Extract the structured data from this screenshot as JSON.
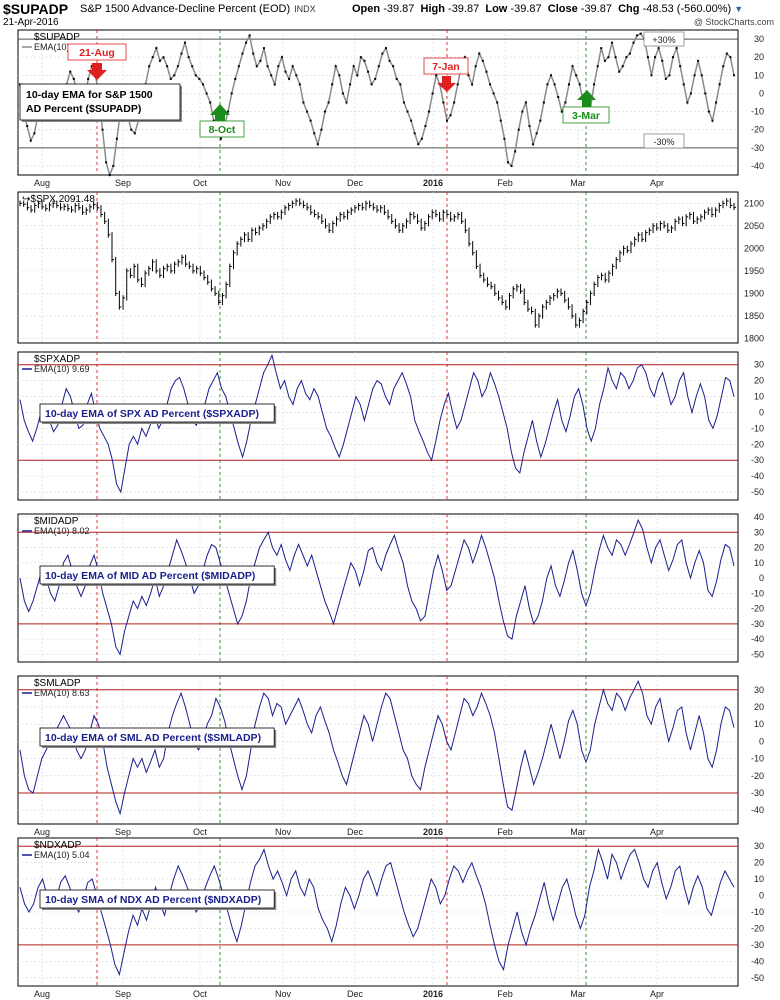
{
  "header": {
    "symbol": "$SUPADP",
    "description": "S&P 1500 Advance-Decline Percent (EOD)",
    "exchange": "INDX",
    "date": "21-Apr-2016",
    "open_label": "Open",
    "open": "-39.87",
    "high_label": "High",
    "high": "-39.87",
    "low_label": "Low",
    "low": "-39.87",
    "close_label": "Close",
    "close": "-39.87",
    "chg_label": "Chg",
    "chg": "-48.53 (-560.00%)",
    "credit": "@ StockCharts.com"
  },
  "colors": {
    "navy": "#1a1f8c",
    "gray_line": "#8a8a8a",
    "red_line": "#b0201c",
    "green": "#1b8c1b",
    "red_marker": "#e02020"
  },
  "months": [
    "Aug",
    "Sep",
    "Oct",
    "Nov",
    "Dec",
    "2016",
    "Feb",
    "Mar",
    "Apr"
  ],
  "annotations": {
    "aug21": "21-Aug",
    "oct8": "8-Oct",
    "jan7": "7-Jan",
    "mar3": "3-Mar",
    "plus30": "+30%",
    "minus30": "-30%",
    "supadp_box_line1": "10-day EMA for S&P 1500",
    "supadp_box_line2": "AD Percent ($SUPADP)"
  },
  "chart_data": [
    {
      "type": "line",
      "symbol": "$SUPADP",
      "series_label": "EMA(10)",
      "legend_entries": [
        "$SUPADP",
        "EMA(10)"
      ],
      "yticks": [
        30,
        20,
        10,
        0,
        -10,
        -20,
        -30,
        -40
      ],
      "ylim": [
        -45,
        35
      ],
      "ref_lines": [
        30,
        -30
      ],
      "values": [
        5,
        -10,
        -18,
        -26,
        -22,
        -12,
        -5,
        2,
        0,
        -8,
        -15,
        -10,
        -2,
        5,
        12,
        8,
        0,
        -10,
        -5,
        8,
        15,
        10,
        0,
        -20,
        -38,
        -45,
        -40,
        -25,
        -10,
        -15,
        -12,
        -20,
        -22,
        -15,
        -10,
        5,
        15,
        20,
        25,
        18,
        20,
        15,
        8,
        10,
        15,
        22,
        28,
        20,
        15,
        10,
        8,
        5,
        0,
        -5,
        -15,
        -20,
        -25,
        -18,
        -10,
        0,
        8,
        15,
        22,
        28,
        32,
        22,
        15,
        18,
        25,
        15,
        10,
        5,
        15,
        20,
        12,
        8,
        15,
        10,
        5,
        -5,
        -10,
        -15,
        -22,
        -28,
        -20,
        -10,
        -5,
        5,
        15,
        10,
        0,
        -5,
        5,
        15,
        10,
        20,
        18,
        12,
        5,
        8,
        15,
        22,
        25,
        18,
        15,
        8,
        5,
        -5,
        -10,
        -15,
        -22,
        -28,
        -25,
        -18,
        -10,
        0,
        10,
        5,
        -5,
        -15,
        -12,
        -5,
        5,
        15,
        20,
        10,
        5,
        15,
        22,
        18,
        12,
        5,
        0,
        -5,
        -15,
        -25,
        -38,
        -40,
        -32,
        -20,
        -10,
        -5,
        -18,
        -28,
        -22,
        -15,
        -5,
        5,
        10,
        5,
        -2,
        -10,
        -5,
        5,
        15,
        10,
        5,
        -5,
        -12,
        -8,
        5,
        15,
        25,
        18,
        20,
        28,
        20,
        12,
        15,
        20,
        22,
        28,
        32,
        33,
        30,
        20,
        10,
        20,
        25,
        18,
        8,
        10,
        20,
        25,
        15,
        5,
        -5,
        0,
        10,
        18,
        10,
        0,
        -10,
        -15,
        -5,
        5,
        15,
        22,
        20,
        10
      ],
      "events": [
        {
          "date": "21-Aug",
          "type": "peak",
          "color": "red"
        },
        {
          "date": "8-Oct",
          "type": "trough",
          "color": "green"
        },
        {
          "date": "7-Jan",
          "type": "peak",
          "color": "red"
        },
        {
          "date": "3-Mar",
          "type": "trough",
          "color": "green"
        }
      ]
    },
    {
      "type": "candlestick",
      "symbol": "$SPX",
      "last_value": "2091.48",
      "yticks": [
        2100,
        2050,
        2000,
        1950,
        1900,
        1850,
        1800
      ],
      "ylim": [
        1790,
        2125
      ],
      "values": [
        2100,
        2098,
        2090,
        2085,
        2095,
        2100,
        2092,
        2088,
        2096,
        2100,
        2095,
        2090,
        2093,
        2088,
        2085,
        2095,
        2090,
        2080,
        2085,
        2092,
        2097,
        2090,
        2075,
        2060,
        2030,
        1975,
        1900,
        1870,
        1890,
        1950,
        1940,
        1960,
        1930,
        1920,
        1945,
        1955,
        1970,
        1950,
        1940,
        1955,
        1960,
        1950,
        1965,
        1970,
        1980,
        1965,
        1960,
        1950,
        1955,
        1945,
        1935,
        1925,
        1910,
        1900,
        1880,
        1895,
        1920,
        1960,
        1990,
        2010,
        2020,
        2030,
        2020,
        2040,
        2035,
        2045,
        2050,
        2060,
        2070,
        2075,
        2070,
        2080,
        2090,
        2095,
        2100,
        2105,
        2100,
        2095,
        2090,
        2080,
        2075,
        2070,
        2060,
        2050,
        2040,
        2055,
        2065,
        2075,
        2070,
        2080,
        2085,
        2090,
        2095,
        2090,
        2100,
        2095,
        2090,
        2085,
        2090,
        2080,
        2070,
        2060,
        2050,
        2040,
        2050,
        2060,
        2075,
        2070,
        2060,
        2045,
        2055,
        2070,
        2080,
        2075,
        2065,
        2080,
        2075,
        2065,
        2070,
        2075,
        2060,
        2040,
        2010,
        1990,
        1960,
        1940,
        1930,
        1920,
        1915,
        1900,
        1890,
        1880,
        1870,
        1895,
        1910,
        1915,
        1905,
        1880,
        1865,
        1860,
        1830,
        1850,
        1870,
        1880,
        1890,
        1895,
        1905,
        1900,
        1885,
        1870,
        1850,
        1830,
        1840,
        1860,
        1880,
        1900,
        1920,
        1935,
        1940,
        1930,
        1945,
        1960,
        1975,
        1990,
        2000,
        1995,
        2010,
        2020,
        2030,
        2020,
        2035,
        2040,
        2050,
        2045,
        2055,
        2050,
        2040,
        2045,
        2060,
        2065,
        2055,
        2070,
        2075,
        2060,
        2065,
        2070,
        2080,
        2085,
        2075,
        2085,
        2095,
        2100,
        2105,
        2095,
        2091
      ]
    },
    {
      "type": "line",
      "symbol": "$SPXADP",
      "series_label": "EMA(10) 9.69",
      "legend_entries": [
        "$SPXADP",
        "EMA(10) 9.69"
      ],
      "box_label": "10-day EMA of SPX AD Percent ($SPXADP)",
      "yticks": [
        30,
        20,
        10,
        0,
        -10,
        -20,
        -30,
        -40,
        -50
      ],
      "ylim": [
        -55,
        38
      ],
      "ref_lines": [
        30,
        -30
      ],
      "values": [
        8,
        -5,
        -12,
        -18,
        -10,
        0,
        5,
        -5,
        -12,
        -8,
        5,
        15,
        10,
        0,
        -10,
        -8,
        5,
        12,
        0,
        -10,
        -15,
        -20,
        -30,
        -45,
        -50,
        -35,
        -20,
        -15,
        -20,
        -10,
        -15,
        -8,
        0,
        -10,
        -5,
        5,
        15,
        20,
        22,
        15,
        5,
        -5,
        -8,
        0,
        5,
        15,
        20,
        25,
        15,
        10,
        0,
        -10,
        -20,
        -28,
        -18,
        -5,
        5,
        15,
        25,
        30,
        36,
        25,
        15,
        20,
        10,
        5,
        15,
        20,
        12,
        8,
        15,
        10,
        0,
        -10,
        -15,
        -22,
        -28,
        -20,
        -10,
        0,
        10,
        5,
        -5,
        5,
        15,
        20,
        18,
        10,
        5,
        15,
        20,
        25,
        18,
        10,
        -5,
        -12,
        -18,
        -25,
        -30,
        -18,
        -5,
        5,
        12,
        0,
        -10,
        -5,
        5,
        15,
        25,
        20,
        10,
        15,
        25,
        18,
        10,
        0,
        -10,
        -25,
        -35,
        -38,
        -25,
        -15,
        -5,
        -18,
        -28,
        -20,
        -10,
        0,
        8,
        -5,
        -12,
        -2,
        10,
        15,
        5,
        -10,
        -18,
        -10,
        5,
        15,
        28,
        20,
        15,
        25,
        22,
        15,
        20,
        28,
        30,
        25,
        15,
        10,
        20,
        25,
        15,
        5,
        10,
        20,
        25,
        10,
        0,
        10,
        18,
        10,
        -5,
        -10,
        -2,
        10,
        22,
        20,
        10
      ],
      "ref_line_values": [
        30,
        -30
      ]
    },
    {
      "type": "line",
      "symbol": "$MIDADP",
      "series_label": "EMA(10) 8.02",
      "legend_entries": [
        "$MIDADP",
        "EMA(10) 8.02"
      ],
      "box_label": "10-day EMA of MID AD Percent ($MIDADP)",
      "yticks": [
        40,
        30,
        20,
        10,
        0,
        -10,
        -20,
        -30,
        -40,
        -50
      ],
      "ylim": [
        -55,
        42
      ],
      "ref_lines": [
        30,
        -30
      ],
      "values": [
        0,
        -15,
        -22,
        -15,
        -5,
        5,
        0,
        -10,
        -15,
        -5,
        10,
        15,
        5,
        -5,
        -12,
        -5,
        8,
        15,
        5,
        -10,
        -20,
        -30,
        -45,
        -50,
        -35,
        -25,
        -15,
        -20,
        -12,
        -18,
        -10,
        0,
        -12,
        -5,
        5,
        15,
        25,
        18,
        10,
        0,
        -10,
        -5,
        5,
        15,
        22,
        20,
        10,
        0,
        -10,
        -20,
        -30,
        -25,
        -15,
        0,
        10,
        20,
        25,
        30,
        20,
        15,
        22,
        12,
        5,
        15,
        22,
        15,
        8,
        15,
        5,
        -5,
        -15,
        -22,
        -30,
        -20,
        -10,
        0,
        10,
        5,
        -5,
        5,
        18,
        20,
        10,
        5,
        15,
        22,
        28,
        18,
        10,
        -5,
        -15,
        -20,
        -28,
        -25,
        -10,
        5,
        15,
        5,
        -8,
        -5,
        5,
        15,
        25,
        20,
        10,
        18,
        28,
        20,
        10,
        0,
        -15,
        -28,
        -38,
        -40,
        -25,
        -15,
        -5,
        -20,
        -30,
        -25,
        -15,
        0,
        8,
        -5,
        -12,
        -2,
        10,
        18,
        5,
        -10,
        -18,
        -10,
        5,
        18,
        28,
        20,
        15,
        25,
        22,
        15,
        22,
        30,
        38,
        32,
        20,
        10,
        20,
        25,
        15,
        5,
        12,
        22,
        25,
        10,
        0,
        10,
        18,
        10,
        -8,
        -12,
        -2,
        12,
        22,
        20,
        8
      ],
      "ref_line_values": [
        30,
        -30
      ]
    },
    {
      "type": "line",
      "symbol": "$SMLADP",
      "series_label": "EMA(10) 8.63",
      "legend_entries": [
        "$SMLADP",
        "EMA(10) 8.63"
      ],
      "box_label": "10-day EMA of SML AD Percent ($SMLADP)",
      "yticks": [
        30,
        20,
        10,
        0,
        -10,
        -20,
        -30,
        -40
      ],
      "ylim": [
        -48,
        38
      ],
      "ref_lines": [
        30,
        -30
      ],
      "values": [
        -5,
        -20,
        -28,
        -30,
        -20,
        -10,
        -5,
        0,
        5,
        10,
        15,
        10,
        5,
        -5,
        -10,
        -5,
        5,
        15,
        10,
        0,
        -15,
        -25,
        -35,
        -42,
        -30,
        -20,
        -10,
        -15,
        -10,
        -18,
        -12,
        -5,
        -15,
        -10,
        5,
        15,
        22,
        28,
        20,
        10,
        0,
        -5,
        0,
        10,
        15,
        25,
        20,
        12,
        0,
        -10,
        -20,
        -28,
        -20,
        -5,
        10,
        20,
        28,
        25,
        15,
        22,
        20,
        10,
        15,
        20,
        25,
        18,
        10,
        5,
        15,
        20,
        12,
        5,
        -5,
        -12,
        -20,
        -25,
        -15,
        -5,
        5,
        15,
        10,
        0,
        10,
        20,
        28,
        25,
        15,
        5,
        -5,
        -10,
        -20,
        -25,
        -28,
        -15,
        -5,
        5,
        15,
        10,
        0,
        -5,
        5,
        15,
        25,
        22,
        15,
        20,
        28,
        22,
        15,
        5,
        -10,
        -25,
        -38,
        -40,
        -28,
        -15,
        -5,
        -15,
        -25,
        -18,
        -10,
        0,
        10,
        0,
        -10,
        0,
        12,
        18,
        10,
        -5,
        -12,
        -5,
        10,
        20,
        30,
        22,
        18,
        28,
        25,
        18,
        25,
        30,
        35,
        28,
        15,
        10,
        20,
        25,
        12,
        0,
        8,
        18,
        20,
        5,
        -5,
        5,
        15,
        5,
        -10,
        -15,
        -5,
        10,
        20,
        18,
        8
      ],
      "ref_line_values": [
        30,
        -30
      ]
    },
    {
      "type": "line",
      "symbol": "$NDXADP",
      "series_label": "EMA(10) 5.04",
      "legend_entries": [
        "$NDXADP",
        "EMA(10) 5.04"
      ],
      "box_label": "10-day SMA of NDX AD Percent ($NDXADP)",
      "yticks": [
        30,
        20,
        10,
        0,
        -10,
        -20,
        -30,
        -40,
        -50
      ],
      "ylim": [
        -55,
        35
      ],
      "ref_lines": [
        30,
        -30
      ],
      "values": [
        5,
        -5,
        -10,
        -5,
        5,
        10,
        0,
        -8,
        -2,
        8,
        12,
        5,
        -5,
        -10,
        -2,
        8,
        10,
        0,
        -10,
        -20,
        -30,
        -42,
        -48,
        -35,
        -22,
        -12,
        -18,
        -8,
        -15,
        -5,
        5,
        -5,
        -12,
        0,
        10,
        18,
        12,
        5,
        -2,
        -10,
        -5,
        5,
        12,
        18,
        10,
        0,
        -10,
        -20,
        -28,
        -18,
        -5,
        8,
        18,
        22,
        28,
        18,
        10,
        15,
        8,
        0,
        10,
        15,
        5,
        0,
        10,
        5,
        -8,
        -15,
        -20,
        -28,
        -18,
        -5,
        5,
        0,
        -8,
        0,
        10,
        15,
        8,
        0,
        10,
        18,
        20,
        10,
        0,
        -10,
        -18,
        -25,
        -20,
        -10,
        0,
        10,
        5,
        -5,
        0,
        10,
        18,
        15,
        8,
        15,
        20,
        12,
        5,
        -5,
        -18,
        -30,
        -40,
        -45,
        -30,
        -20,
        -10,
        -22,
        -30,
        -20,
        -12,
        -2,
        8,
        -5,
        -15,
        -5,
        5,
        10,
        0,
        -12,
        -20,
        -12,
        5,
        15,
        28,
        20,
        10,
        25,
        20,
        10,
        18,
        25,
        28,
        20,
        10,
        5,
        15,
        20,
        8,
        -2,
        5,
        15,
        18,
        5,
        -5,
        5,
        12,
        5,
        -8,
        -12,
        -2,
        8,
        15,
        10,
        5
      ],
      "ref_line_values": [
        30,
        -30
      ]
    }
  ]
}
